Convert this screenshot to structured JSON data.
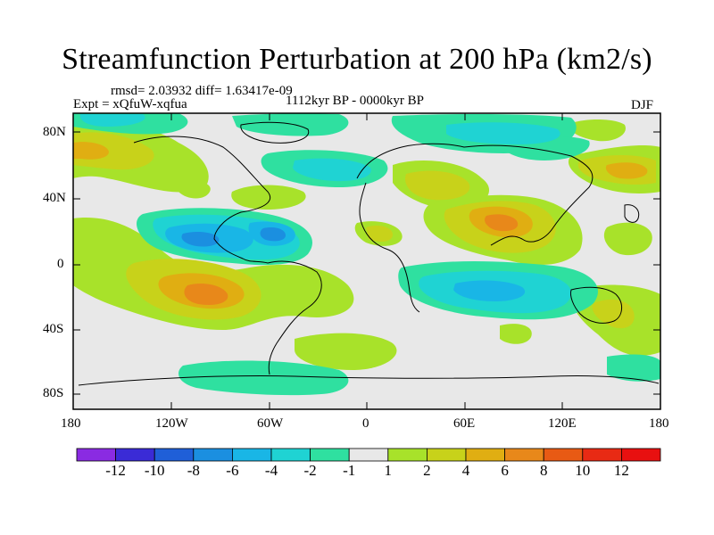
{
  "title": "Streamfunction Perturbation at 200 hPa (km2/s)",
  "stats": "rmsd= 2.03932  diff= 1.63417e-09",
  "experiment": "Expt = xQfuW-xqfua",
  "period": "1112kyr BP - 0000kyr BP",
  "season": "DJF",
  "lat_labels": [
    "80N",
    "40N",
    "0",
    "40S",
    "80S"
  ],
  "lon_labels": [
    "180",
    "120W",
    "60W",
    "0",
    "60E",
    "120E",
    "180"
  ],
  "colorbar": {
    "labels": [
      "-12",
      "-10",
      "-8",
      "-6",
      "-4",
      "-2",
      "-1",
      "1",
      "2",
      "4",
      "6",
      "8",
      "10",
      "12"
    ],
    "colors": [
      "#8a2be2",
      "#3a2bd6",
      "#1f5fd8",
      "#1b8fe0",
      "#19b6e6",
      "#1fd3d3",
      "#2fe0a0",
      "#e8e8e8",
      "#a8e22a",
      "#c8d21a",
      "#e0ae12",
      "#e8881a",
      "#e85a14",
      "#e82a14",
      "#e81010"
    ]
  }
}
